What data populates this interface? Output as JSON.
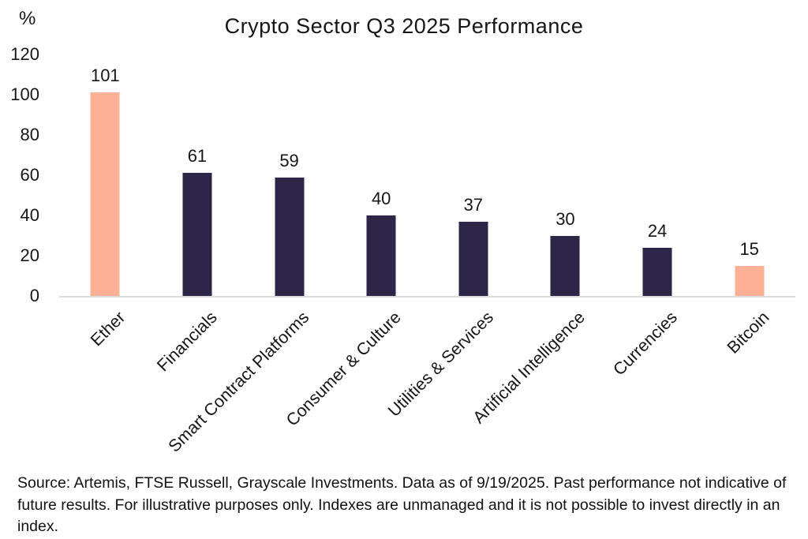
{
  "chart_data": {
    "type": "bar",
    "title": "Crypto Sector Q3 2025 Performance",
    "ylabel": "%",
    "xlabel": "",
    "categories": [
      "Ether",
      "Financials",
      "Smart Contract Platforms",
      "Consumer & Culture",
      "Utilities & Services",
      "Artificial Intelligence",
      "Currencies",
      "Bitcoin"
    ],
    "values": [
      101,
      61,
      59,
      40,
      37,
      30,
      24,
      15
    ],
    "bar_colors": [
      "#FCB096",
      "#2D2649",
      "#2D2649",
      "#2D2649",
      "#2D2649",
      "#2D2649",
      "#2D2649",
      "#FCB096"
    ],
    "highlight_color": "#FCB096",
    "default_bar_color": "#2D2649",
    "yticks": [
      0,
      20,
      40,
      60,
      80,
      100,
      120
    ],
    "ylim": [
      0,
      120
    ],
    "grid": false,
    "legend": "none",
    "value_labels_shown": true,
    "category_label_rotation_deg": -45,
    "axis_line_color": "#DCDCDC"
  },
  "footer": {
    "source_text": "Source: Artemis, FTSE Russell, Grayscale Investments. Data as of 9/19/2025. Past performance not indicative of future results. For illustrative purposes only. Indexes are unmanaged and it is not possible to invest directly in an index."
  }
}
